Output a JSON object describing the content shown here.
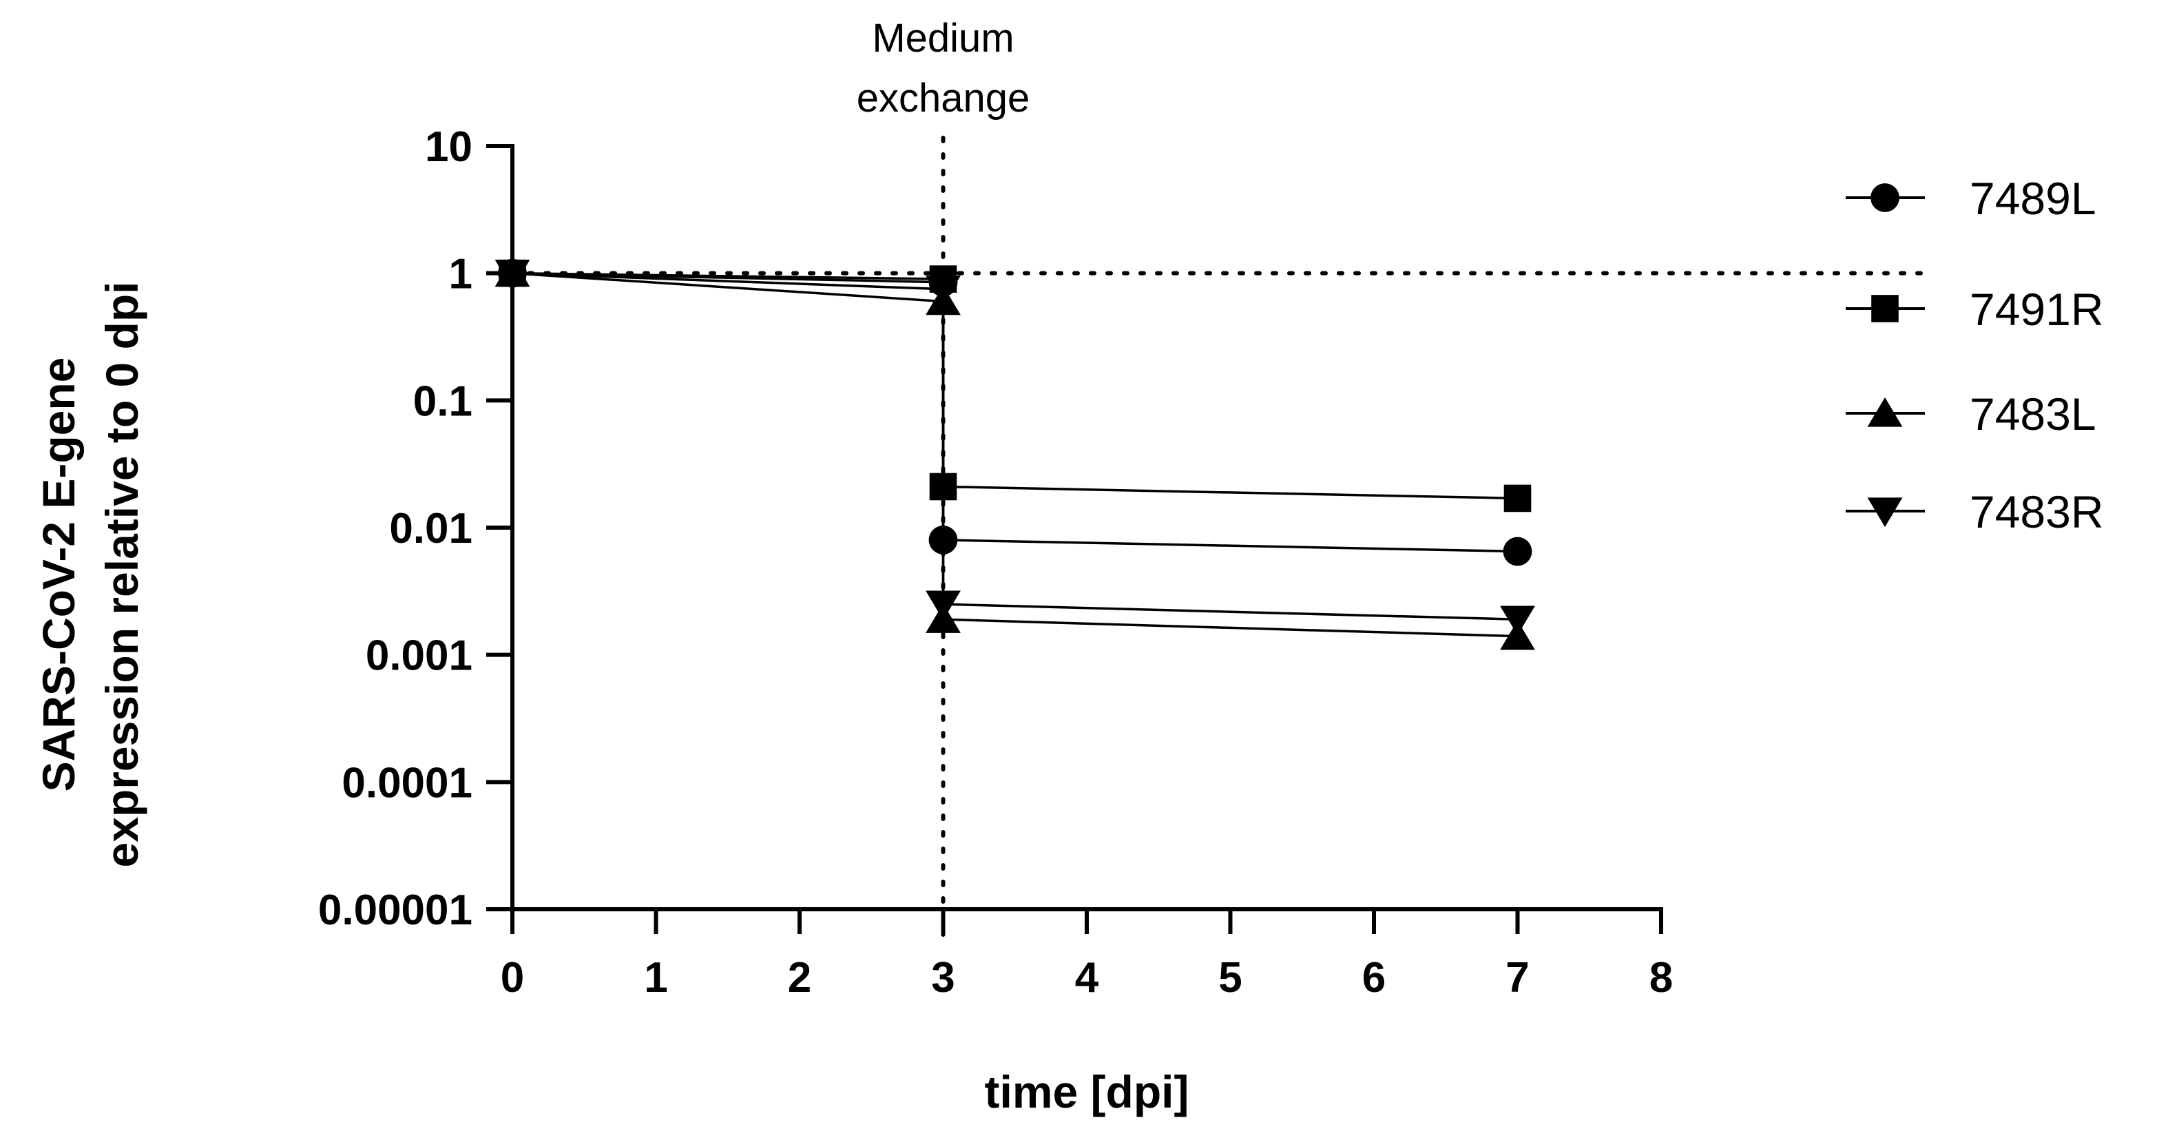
{
  "chart_data": {
    "type": "line",
    "title": "",
    "xlabel": "time [dpi]",
    "ylabel_lines": [
      "SARS-CoV-2 E-gene",
      "expression relative to 0 dpi"
    ],
    "xlim": [
      0,
      8
    ],
    "yscale": "log",
    "ylim": [
      1e-05,
      10
    ],
    "x_ticks": [
      0,
      1,
      2,
      3,
      4,
      5,
      6,
      7,
      8
    ],
    "x_tick_labels": [
      "0",
      "1",
      "2",
      "3",
      "4",
      "5",
      "6",
      "7",
      "8"
    ],
    "y_ticks": [
      1e-05,
      0.0001,
      0.001,
      0.01,
      0.1,
      1,
      10
    ],
    "y_tick_labels": [
      "0.00001",
      "0.0001",
      "0.001",
      "0.01",
      "0.1",
      "1",
      "10"
    ],
    "reference_lines": {
      "horizontal_y": 1,
      "vertical_x": 3
    },
    "annotation": {
      "lines": [
        "Medium",
        "exchange"
      ],
      "x": 3
    },
    "legend_position": "right",
    "series": [
      {
        "name": "7489L",
        "marker": "circle",
        "x": [
          0,
          3,
          3,
          7
        ],
        "y": [
          1,
          0.85,
          0.008,
          0.0065
        ]
      },
      {
        "name": "7491R",
        "marker": "square",
        "x": [
          0,
          3,
          3,
          7
        ],
        "y": [
          1,
          0.9,
          0.021,
          0.017
        ]
      },
      {
        "name": "7483L",
        "marker": "triangle-up",
        "x": [
          0,
          3,
          3,
          7
        ],
        "y": [
          1,
          0.6,
          0.0019,
          0.0014
        ]
      },
      {
        "name": "7483R",
        "marker": "triangle-down",
        "x": [
          0,
          3,
          3,
          7
        ],
        "y": [
          1,
          0.75,
          0.0025,
          0.0019
        ]
      }
    ]
  }
}
